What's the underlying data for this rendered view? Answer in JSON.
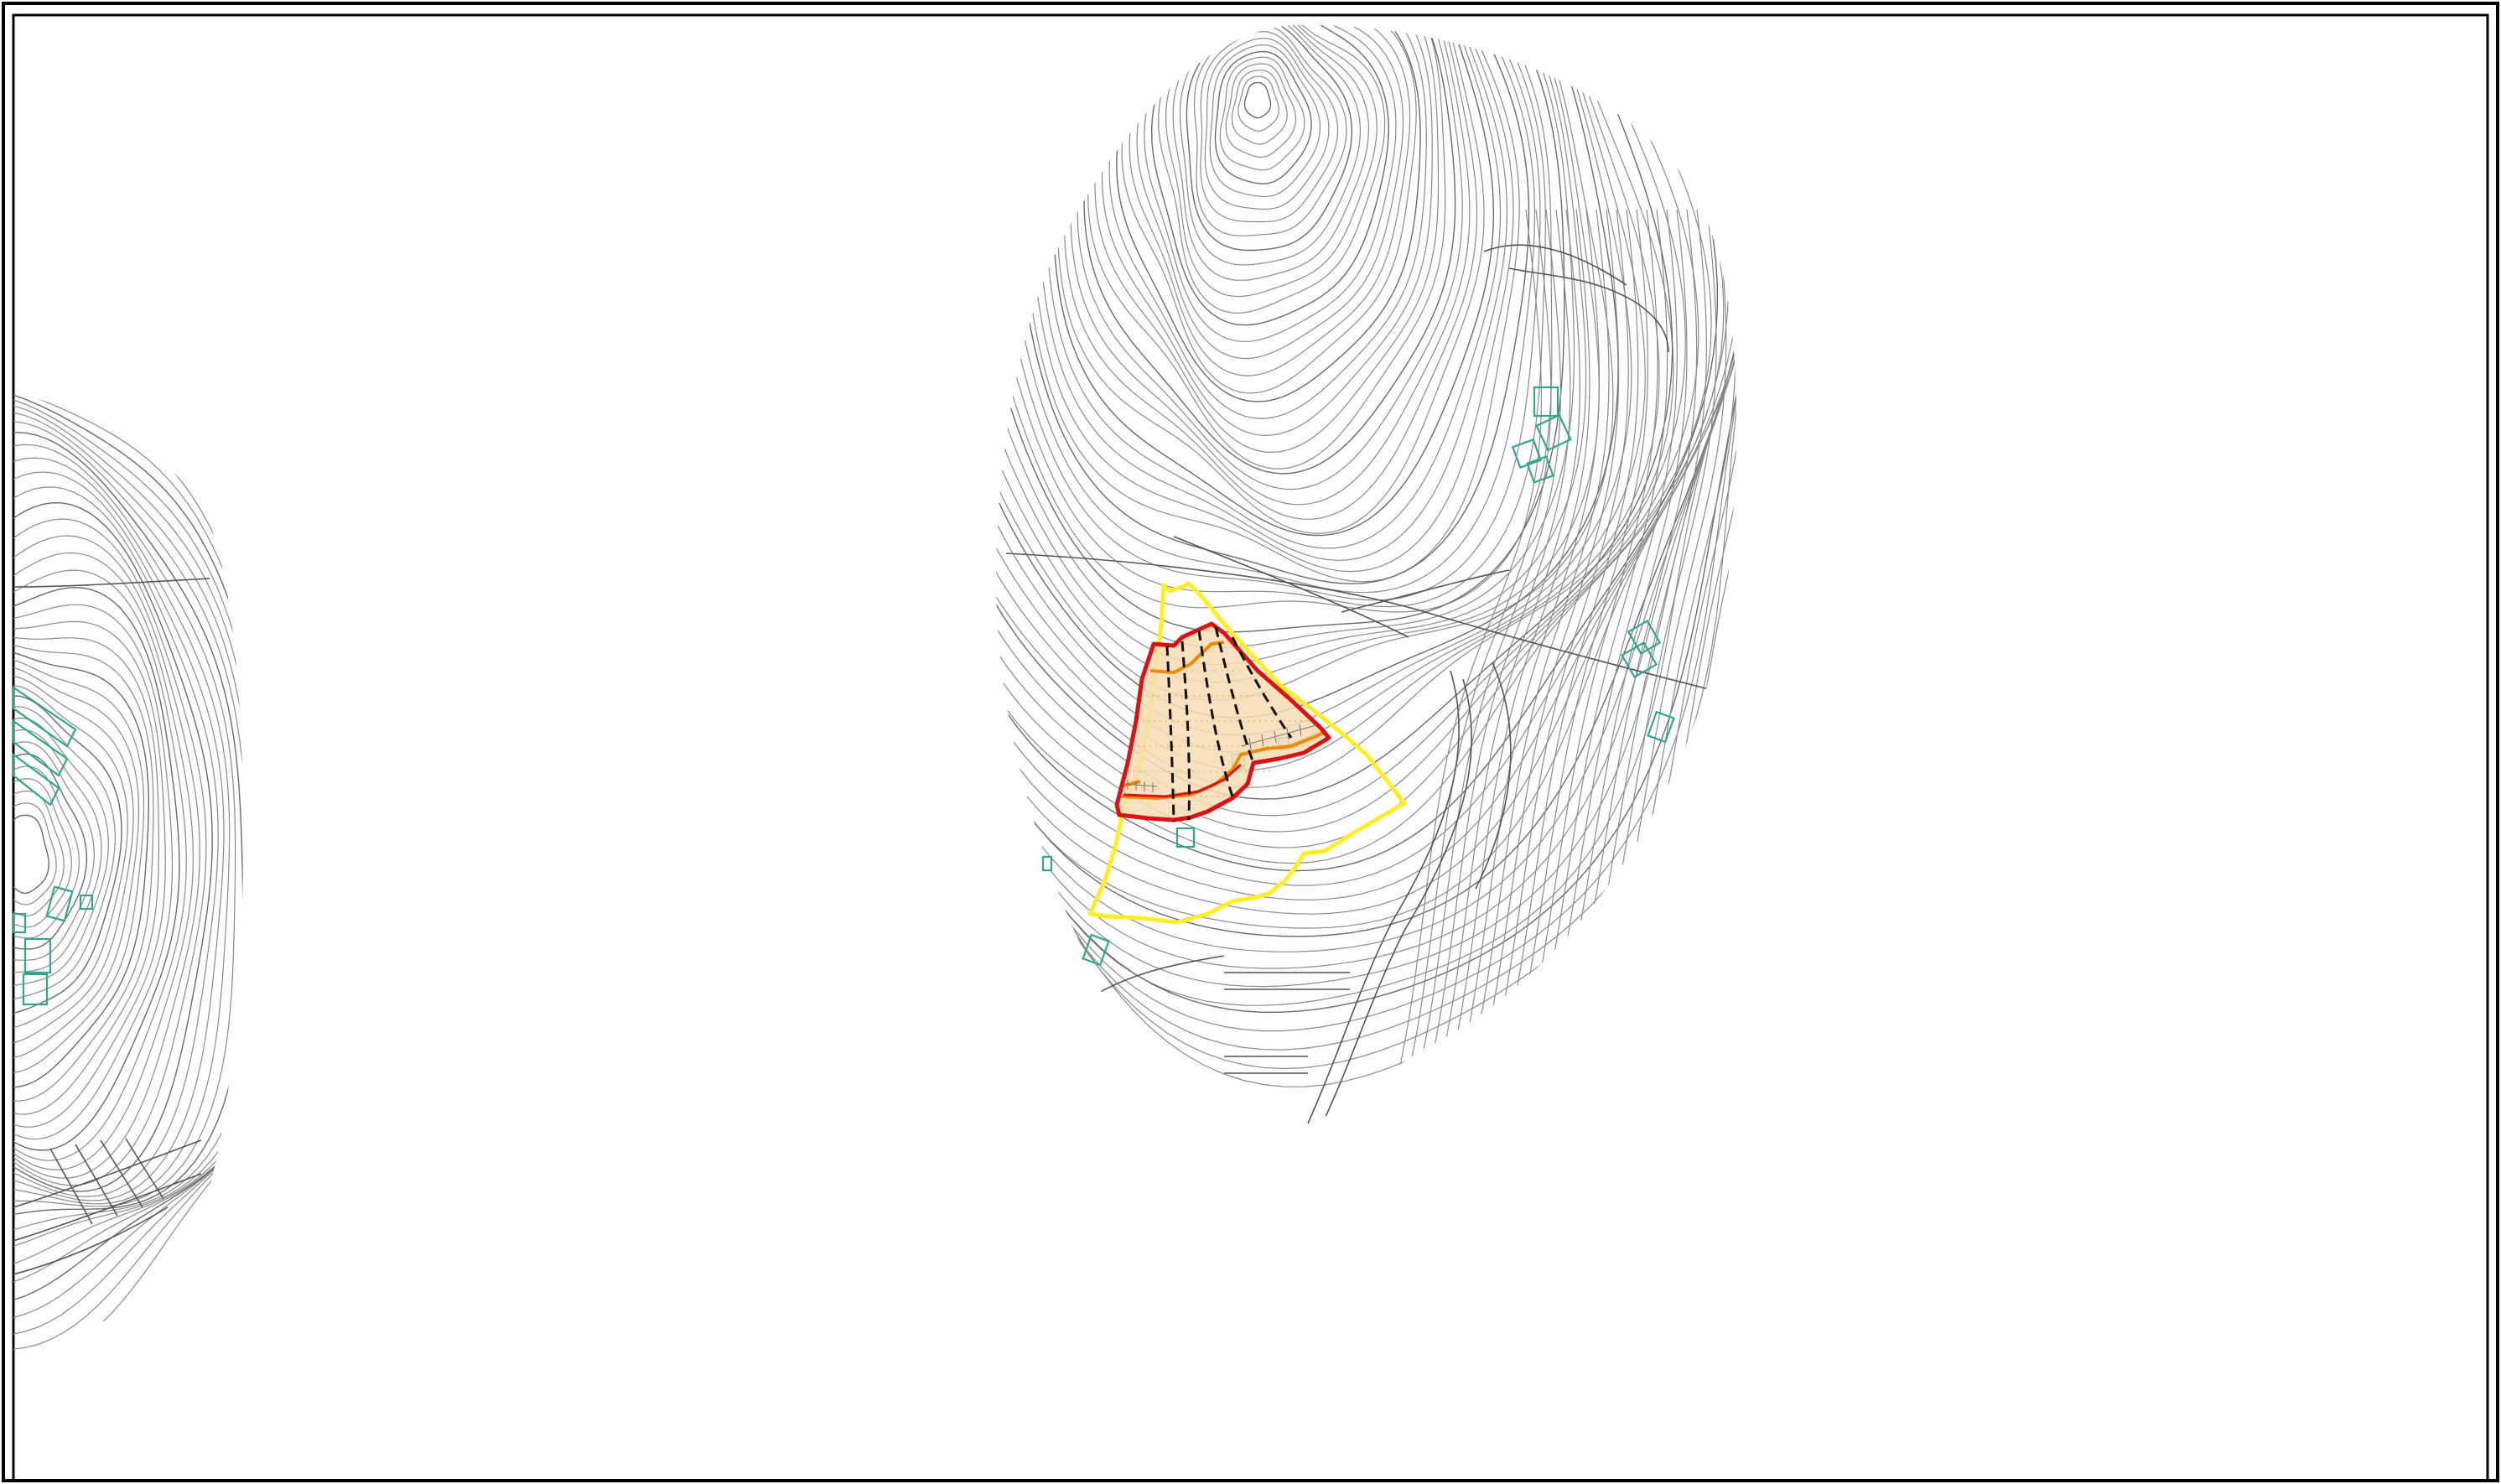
{
  "viewer": {
    "title": "",
    "layers": [
      "contours",
      "roads",
      "buildings",
      "site-boundary",
      "study-area",
      "platforms"
    ]
  },
  "colors": {
    "background": "#ffffff",
    "frame": "#000000",
    "contour": "#6a6a6a",
    "building": "#2fa88a",
    "study_area_boundary": "#ffee22",
    "site_boundary": "#dd1111",
    "terrace_line": "#ee8a00",
    "section_lines": "#111111",
    "site_fill": "#f6dcb4"
  },
  "features": {
    "study_area": {
      "label": "",
      "shape": "polygon"
    },
    "site": {
      "label": "",
      "shape": "polygon"
    },
    "terraces": {
      "count": 3
    },
    "section_lines": {
      "count": 5,
      "style": "dashed"
    }
  }
}
